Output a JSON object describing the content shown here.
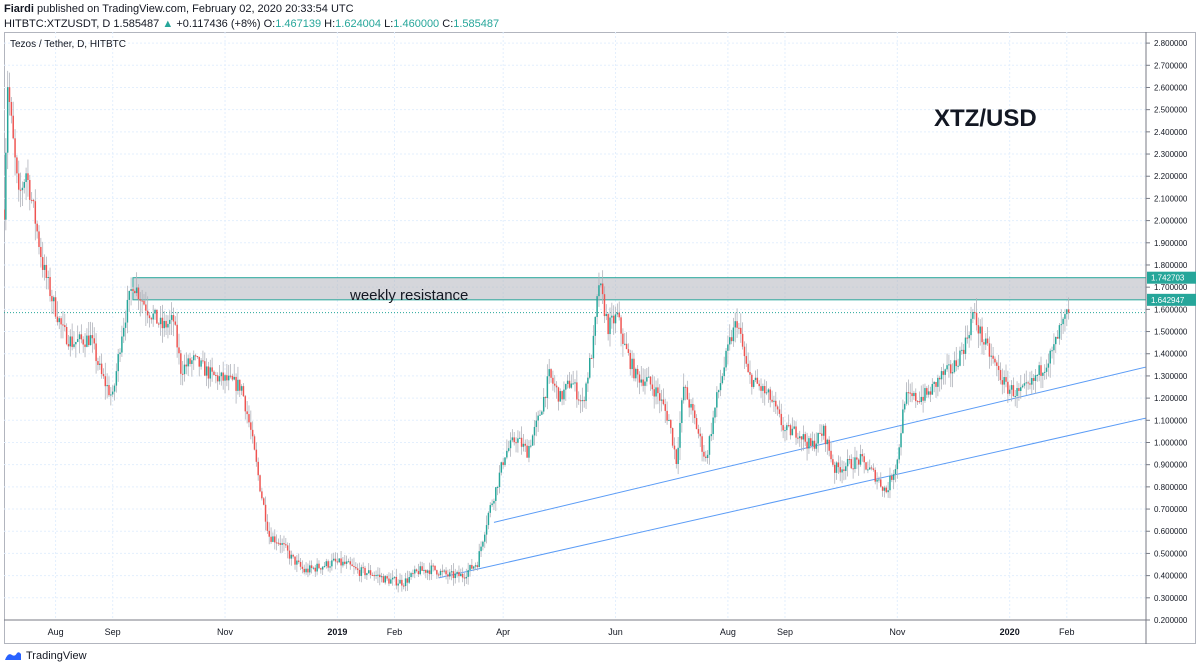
{
  "header": {
    "publisher": "Fiardi",
    "published_text": "published on TradingView.com, February 02, 2020 20:33:54 UTC",
    "symbol": "HITBTC:XTZUSDT, D",
    "last": "1.585487",
    "change_arrow": "▲",
    "change": "+0.117436 (+8%)",
    "o_label": "O:",
    "o": "1.467139",
    "h_label": "H:",
    "h": "1.624004",
    "l_label": "L:",
    "l": "1.460000",
    "c_label": "C:",
    "c": "1.585487"
  },
  "footer": {
    "brand": "TradingView",
    "icon": "tradingview-logo-icon"
  },
  "chart_data": {
    "type": "candlestick",
    "title": "Tezos / Tether, D, HITBTC",
    "watermark": "XTZ/USD",
    "annotation": "weekly resistance",
    "ylim": [
      0.2,
      2.85
    ],
    "y_ticks": [
      "2.800000",
      "2.700000",
      "2.600000",
      "2.500000",
      "2.400000",
      "2.300000",
      "2.200000",
      "2.100000",
      "2.000000",
      "1.900000",
      "1.800000",
      "1.700000",
      "1.600000",
      "1.500000",
      "1.400000",
      "1.300000",
      "1.200000",
      "1.100000",
      "1.000000",
      "0.900000",
      "0.800000",
      "0.700000",
      "0.600000",
      "0.500000",
      "0.400000",
      "0.300000",
      "0.200000"
    ],
    "x_range": [
      "2018-07-04",
      "2020-03-15"
    ],
    "x_ticks": [
      {
        "label": "Aug",
        "date": "2018-08-01"
      },
      {
        "label": "Sep",
        "date": "2018-09-01"
      },
      {
        "label": "Nov",
        "date": "2018-11-01"
      },
      {
        "label": "2019",
        "date": "2019-01-01",
        "bold": true
      },
      {
        "label": "Feb",
        "date": "2019-02-01"
      },
      {
        "label": "Apr",
        "date": "2019-04-01"
      },
      {
        "label": "Jun",
        "date": "2019-06-01"
      },
      {
        "label": "Aug",
        "date": "2019-08-01"
      },
      {
        "label": "Sep",
        "date": "2019-09-01"
      },
      {
        "label": "Nov",
        "date": "2019-11-01"
      },
      {
        "label": "2020",
        "date": "2020-01-01",
        "bold": true
      },
      {
        "label": "Feb",
        "date": "2020-02-01"
      }
    ],
    "resistance_zone": {
      "low": 1.642947,
      "high": 1.742703,
      "from": "2018-09-12"
    },
    "price_labels": [
      {
        "text": "1.742703",
        "value": 1.742703
      },
      {
        "text": "1.642947",
        "value": 1.642947
      }
    ],
    "current_price": 1.585487,
    "trendlines": [
      {
        "x1": "2019-03-27",
        "y1": 0.64,
        "x2": "2020-03-15",
        "y2": 1.34
      },
      {
        "x1": "2019-02-25",
        "y1": 0.39,
        "x2": "2020-03-15",
        "y2": 1.11
      }
    ],
    "path": [
      [
        "2018-07-04",
        2.05
      ],
      [
        "2018-07-06",
        2.62
      ],
      [
        "2018-07-09",
        2.35
      ],
      [
        "2018-07-12",
        2.1
      ],
      [
        "2018-07-16",
        2.22
      ],
      [
        "2018-07-20",
        2.05
      ],
      [
        "2018-07-25",
        1.8
      ],
      [
        "2018-07-30",
        1.65
      ],
      [
        "2018-08-05",
        1.5
      ],
      [
        "2018-08-10",
        1.45
      ],
      [
        "2018-08-15",
        1.46
      ],
      [
        "2018-08-20",
        1.47
      ],
      [
        "2018-08-26",
        1.3
      ],
      [
        "2018-09-01",
        1.2
      ],
      [
        "2018-09-06",
        1.5
      ],
      [
        "2018-09-12",
        1.72
      ],
      [
        "2018-09-20",
        1.6
      ],
      [
        "2018-09-28",
        1.52
      ],
      [
        "2018-10-04",
        1.55
      ],
      [
        "2018-10-08",
        1.33
      ],
      [
        "2018-10-15",
        1.37
      ],
      [
        "2018-10-25",
        1.3
      ],
      [
        "2018-11-02",
        1.28
      ],
      [
        "2018-11-10",
        1.25
      ],
      [
        "2018-11-15",
        1.05
      ],
      [
        "2018-11-20",
        0.8
      ],
      [
        "2018-11-25",
        0.58
      ],
      [
        "2018-12-01",
        0.55
      ],
      [
        "2018-12-07",
        0.48
      ],
      [
        "2018-12-14",
        0.42
      ],
      [
        "2018-12-22",
        0.44
      ],
      [
        "2018-12-30",
        0.46
      ],
      [
        "2019-01-06",
        0.45
      ],
      [
        "2019-01-12",
        0.42
      ],
      [
        "2019-01-20",
        0.41
      ],
      [
        "2019-01-28",
        0.38
      ],
      [
        "2019-02-06",
        0.37
      ],
      [
        "2019-02-14",
        0.42
      ],
      [
        "2019-02-22",
        0.43
      ],
      [
        "2019-03-02",
        0.4
      ],
      [
        "2019-03-10",
        0.4
      ],
      [
        "2019-03-18",
        0.46
      ],
      [
        "2019-03-24",
        0.68
      ],
      [
        "2019-03-28",
        0.79
      ],
      [
        "2019-04-02",
        0.95
      ],
      [
        "2019-04-08",
        1.02
      ],
      [
        "2019-04-14",
        0.96
      ],
      [
        "2019-04-20",
        1.1
      ],
      [
        "2019-04-26",
        1.3
      ],
      [
        "2019-05-02",
        1.2
      ],
      [
        "2019-05-08",
        1.28
      ],
      [
        "2019-05-14",
        1.17
      ],
      [
        "2019-05-20",
        1.45
      ],
      [
        "2019-05-23",
        1.72
      ],
      [
        "2019-05-28",
        1.52
      ],
      [
        "2019-06-02",
        1.57
      ],
      [
        "2019-06-06",
        1.43
      ],
      [
        "2019-06-12",
        1.3
      ],
      [
        "2019-06-18",
        1.28
      ],
      [
        "2019-06-24",
        1.22
      ],
      [
        "2019-06-30",
        1.1
      ],
      [
        "2019-07-04",
        0.92
      ],
      [
        "2019-07-08",
        1.25
      ],
      [
        "2019-07-14",
        1.1
      ],
      [
        "2019-07-20",
        0.92
      ],
      [
        "2019-07-26",
        1.2
      ],
      [
        "2019-08-02",
        1.45
      ],
      [
        "2019-08-06",
        1.55
      ],
      [
        "2019-08-12",
        1.3
      ],
      [
        "2019-08-18",
        1.25
      ],
      [
        "2019-08-24",
        1.2
      ],
      [
        "2019-09-01",
        1.05
      ],
      [
        "2019-09-08",
        1.05
      ],
      [
        "2019-09-15",
        0.98
      ],
      [
        "2019-09-22",
        1.05
      ],
      [
        "2019-09-28",
        0.88
      ],
      [
        "2019-10-05",
        0.9
      ],
      [
        "2019-10-12",
        0.92
      ],
      [
        "2019-10-20",
        0.85
      ],
      [
        "2019-10-26",
        0.78
      ],
      [
        "2019-11-01",
        0.92
      ],
      [
        "2019-11-05",
        1.2
      ],
      [
        "2019-11-12",
        1.2
      ],
      [
        "2019-11-18",
        1.22
      ],
      [
        "2019-11-25",
        1.3
      ],
      [
        "2019-12-01",
        1.33
      ],
      [
        "2019-12-08",
        1.45
      ],
      [
        "2019-12-12",
        1.58
      ],
      [
        "2019-12-18",
        1.45
      ],
      [
        "2019-12-24",
        1.35
      ],
      [
        "2019-12-30",
        1.25
      ],
      [
        "2020-01-06",
        1.22
      ],
      [
        "2020-01-12",
        1.25
      ],
      [
        "2020-01-18",
        1.33
      ],
      [
        "2020-01-24",
        1.4
      ],
      [
        "2020-01-28",
        1.5
      ],
      [
        "2020-02-02",
        1.585487
      ]
    ]
  }
}
